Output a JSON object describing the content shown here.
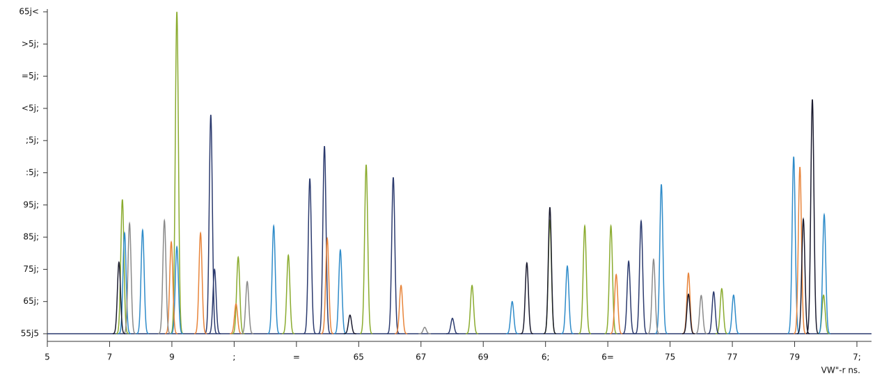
{
  "chart_data": {
    "type": "chromatogram",
    "x_label": "VW\"-r ns.",
    "xlim": [
      0,
      26
    ],
    "ylim": [
      0,
      100
    ],
    "xticks": [
      {
        "value": 0,
        "label": "5"
      },
      {
        "value": 2,
        "label": "7"
      },
      {
        "value": 4,
        "label": "9"
      },
      {
        "value": 6,
        "label": ";"
      },
      {
        "value": 8,
        "label": "="
      },
      {
        "value": 10,
        "label": "65"
      },
      {
        "value": 12,
        "label": "67"
      },
      {
        "value": 14,
        "label": "69"
      },
      {
        "value": 16,
        "label": "6;"
      },
      {
        "value": 18,
        "label": "6="
      },
      {
        "value": 20,
        "label": "75"
      },
      {
        "value": 22,
        "label": "77"
      },
      {
        "value": 24,
        "label": "79"
      },
      {
        "value": 26,
        "label": "7;"
      }
    ],
    "yticks": [
      {
        "value": 0,
        "label": "55j5"
      },
      {
        "value": 10,
        "label": "65j;"
      },
      {
        "value": 20,
        "label": "75j;"
      },
      {
        "value": 30,
        "label": "85j;"
      },
      {
        "value": 40,
        "label": "95j;"
      },
      {
        "value": 50,
        "label": ":5j;"
      },
      {
        "value": 60,
        "label": ";5j;"
      },
      {
        "value": 70,
        "label": "<5j;"
      },
      {
        "value": 80,
        "label": "=5j;"
      },
      {
        "value": 90,
        "label": ">5j;"
      },
      {
        "value": 100,
        "label": "65j<"
      }
    ],
    "series": [
      {
        "color": "#8aab2e",
        "x": [
          2.41,
          4.16,
          6.13,
          7.74,
          10.24,
          13.64,
          16.14,
          17.26,
          18.1,
          21.66,
          24.93
        ],
        "values": [
          41.7,
          100,
          23.8,
          24.4,
          52.5,
          15,
          35,
          33.5,
          33.5,
          14,
          12
        ]
      },
      {
        "color": "#2e8bc9",
        "x": [
          2.48,
          3.06,
          4.16,
          7.27,
          9.41,
          14.93,
          16.7,
          19.72,
          22.04,
          23.97,
          24.95
        ],
        "values": [
          31.3,
          32.2,
          27,
          33.5,
          26,
          10,
          21,
          46.4,
          12,
          55,
          37
        ]
      },
      {
        "color": "#2b3a6e",
        "x": [
          5.25,
          5.37,
          8.43,
          8.9,
          11.11,
          13.01,
          18.67,
          19.07,
          21.4
        ],
        "values": [
          68,
          20,
          48.2,
          58.3,
          48.6,
          4.8,
          22.5,
          35,
          13
        ]
      },
      {
        "color": "#e8843a",
        "x": [
          3.98,
          4.92,
          6.06,
          8.99,
          11.36,
          18.27,
          20.59,
          24.17
        ],
        "values": [
          28.5,
          31.3,
          9.3,
          29.6,
          15,
          18.4,
          18.8,
          51.8
        ]
      },
      {
        "color": "#8a8a8a",
        "x": [
          2.64,
          3.76,
          6.42,
          12.12,
          19.47,
          21
        ],
        "values": [
          34.3,
          35.2,
          16.2,
          2,
          23.1,
          11.9
        ]
      },
      {
        "color": "#1a1a2e",
        "x": [
          2.3,
          9.72,
          15.4,
          16.14,
          20.59,
          24.28,
          24.57
        ],
        "values": [
          22.2,
          5.8,
          22,
          39.3,
          12.3,
          35.6,
          72.8
        ]
      }
    ]
  }
}
